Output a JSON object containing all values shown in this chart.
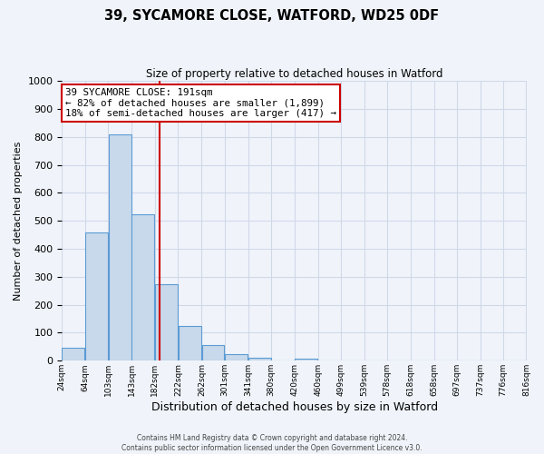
{
  "title": "39, SYCAMORE CLOSE, WATFORD, WD25 0DF",
  "subtitle": "Size of property relative to detached houses in Watford",
  "xlabel": "Distribution of detached houses by size in Watford",
  "ylabel": "Number of detached properties",
  "bar_left_edges": [
    24,
    64,
    103,
    143,
    182,
    222,
    262,
    301,
    341,
    380,
    420,
    460,
    499,
    539,
    578,
    618,
    658,
    697,
    737,
    776
  ],
  "bar_widths": [
    39,
    39,
    39,
    39,
    39,
    39,
    39,
    39,
    39,
    39,
    39,
    39,
    39,
    39,
    39,
    39,
    39,
    39,
    39,
    39
  ],
  "bar_heights": [
    47,
    460,
    810,
    525,
    275,
    125,
    57,
    23,
    12,
    0,
    8,
    0,
    0,
    0,
    0,
    0,
    0,
    0,
    0,
    0
  ],
  "bar_color": "#c8d9eb",
  "bar_edgecolor": "#5b9bd5",
  "property_line_x": 191,
  "ylim": [
    0,
    1000
  ],
  "yticks": [
    0,
    100,
    200,
    300,
    400,
    500,
    600,
    700,
    800,
    900,
    1000
  ],
  "x_tick_labels": [
    "24sqm",
    "64sqm",
    "103sqm",
    "143sqm",
    "182sqm",
    "222sqm",
    "262sqm",
    "301sqm",
    "341sqm",
    "380sqm",
    "420sqm",
    "460sqm",
    "499sqm",
    "539sqm",
    "578sqm",
    "618sqm",
    "658sqm",
    "697sqm",
    "737sqm",
    "776sqm",
    "816sqm"
  ],
  "xlim_left": 24,
  "xlim_right": 816,
  "annotation_title": "39 SYCAMORE CLOSE: 191sqm",
  "annotation_line1": "← 82% of detached houses are smaller (1,899)",
  "annotation_line2": "18% of semi-detached houses are larger (417) →",
  "annotation_box_color": "#ffffff",
  "annotation_box_edgecolor": "#cc0000",
  "red_line_color": "#cc0000",
  "grid_color": "#d0d8e8",
  "footer_line1": "Contains HM Land Registry data © Crown copyright and database right 2024.",
  "footer_line2": "Contains public sector information licensed under the Open Government Licence v3.0.",
  "bg_color": "#f0f4fa"
}
